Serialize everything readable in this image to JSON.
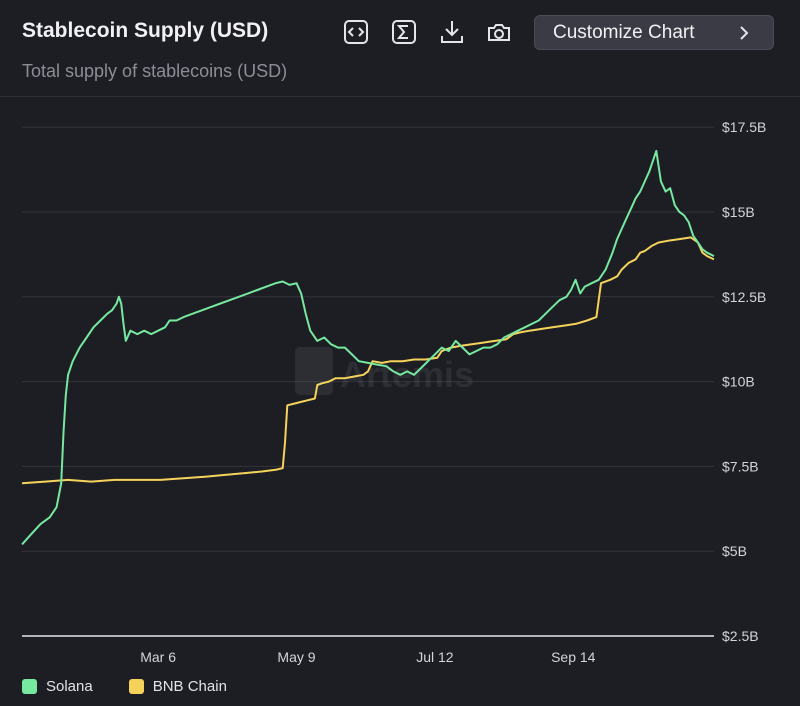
{
  "header": {
    "title": "Stablecoin Supply (USD)",
    "subtitle": "Total supply of stablecoins (USD)",
    "customize_label": "Customize Chart",
    "icons": [
      "embed-code-icon",
      "sum-icon",
      "download-icon",
      "camera-icon",
      "chevron-right-icon"
    ]
  },
  "watermark": "Artemis",
  "colors": {
    "solana": "#76e8a0",
    "bnb": "#f5d35a",
    "background": "#1d1e24",
    "grid": "#33343c",
    "axis_text": "#d4d4da"
  },
  "chart_data": {
    "type": "line",
    "title": "Stablecoin Supply (USD)",
    "subtitle": "Total supply of stablecoins (USD)",
    "x_tick_labels": [
      "Mar 6",
      "May 9",
      "Jul 12",
      "Sep 14"
    ],
    "y_tick_labels": [
      "$2.5B",
      "$5B",
      "$7.5B",
      "$10B",
      "$12.5B",
      "$15B",
      "$17.5B"
    ],
    "y_ticks": [
      2.5,
      5,
      7.5,
      10,
      12.5,
      15,
      17.5
    ],
    "ylim": [
      2.5,
      18.3
    ],
    "xlim": [
      0,
      300
    ],
    "x_tick_positions": [
      59,
      119,
      179,
      239
    ],
    "y_unit": "B USD",
    "grid": true,
    "legend_position": "bottom-left",
    "series": [
      {
        "name": "Solana",
        "color": "#76e8a0",
        "points": [
          [
            0,
            5.2
          ],
          [
            4,
            5.5
          ],
          [
            8,
            5.8
          ],
          [
            12,
            6.0
          ],
          [
            15,
            6.3
          ],
          [
            17,
            7.0
          ],
          [
            18,
            8.5
          ],
          [
            19,
            9.6
          ],
          [
            20,
            10.2
          ],
          [
            22,
            10.6
          ],
          [
            25,
            11.0
          ],
          [
            28,
            11.3
          ],
          [
            31,
            11.6
          ],
          [
            34,
            11.8
          ],
          [
            37,
            12.0
          ],
          [
            39,
            12.1
          ],
          [
            41,
            12.3
          ],
          [
            42,
            12.5
          ],
          [
            43,
            12.3
          ],
          [
            44,
            11.7
          ],
          [
            45,
            11.2
          ],
          [
            47,
            11.5
          ],
          [
            50,
            11.4
          ],
          [
            53,
            11.5
          ],
          [
            56,
            11.4
          ],
          [
            59,
            11.5
          ],
          [
            62,
            11.6
          ],
          [
            64,
            11.8
          ],
          [
            67,
            11.8
          ],
          [
            70,
            11.9
          ],
          [
            74,
            12.0
          ],
          [
            78,
            12.1
          ],
          [
            82,
            12.2
          ],
          [
            86,
            12.3
          ],
          [
            90,
            12.4
          ],
          [
            94,
            12.5
          ],
          [
            98,
            12.6
          ],
          [
            102,
            12.7
          ],
          [
            106,
            12.8
          ],
          [
            110,
            12.9
          ],
          [
            113,
            12.95
          ],
          [
            116,
            12.85
          ],
          [
            119,
            12.9
          ],
          [
            121,
            12.6
          ],
          [
            123,
            12.0
          ],
          [
            125,
            11.5
          ],
          [
            128,
            11.2
          ],
          [
            131,
            11.3
          ],
          [
            134,
            11.1
          ],
          [
            137,
            11.0
          ],
          [
            140,
            11.0
          ],
          [
            143,
            10.8
          ],
          [
            146,
            10.6
          ],
          [
            150,
            10.55
          ],
          [
            154,
            10.5
          ],
          [
            158,
            10.45
          ],
          [
            161,
            10.3
          ],
          [
            164,
            10.2
          ],
          [
            167,
            10.3
          ],
          [
            170,
            10.2
          ],
          [
            173,
            10.4
          ],
          [
            176,
            10.6
          ],
          [
            179,
            10.8
          ],
          [
            182,
            11.0
          ],
          [
            185,
            10.9
          ],
          [
            188,
            11.2
          ],
          [
            191,
            11.0
          ],
          [
            194,
            10.8
          ],
          [
            197,
            10.9
          ],
          [
            200,
            11.0
          ],
          [
            203,
            11.0
          ],
          [
            206,
            11.1
          ],
          [
            209,
            11.3
          ],
          [
            212,
            11.4
          ],
          [
            215,
            11.5
          ],
          [
            218,
            11.6
          ],
          [
            221,
            11.7
          ],
          [
            224,
            11.8
          ],
          [
            227,
            12.0
          ],
          [
            230,
            12.2
          ],
          [
            233,
            12.4
          ],
          [
            236,
            12.5
          ],
          [
            238,
            12.7
          ],
          [
            240,
            13.0
          ],
          [
            242,
            12.6
          ],
          [
            244,
            12.8
          ],
          [
            247,
            12.9
          ],
          [
            250,
            13.0
          ],
          [
            253,
            13.3
          ],
          [
            256,
            13.8
          ],
          [
            258,
            14.2
          ],
          [
            260,
            14.5
          ],
          [
            262,
            14.8
          ],
          [
            264,
            15.1
          ],
          [
            266,
            15.4
          ],
          [
            268,
            15.6
          ],
          [
            270,
            15.9
          ],
          [
            272,
            16.2
          ],
          [
            274,
            16.6
          ],
          [
            275,
            16.8
          ],
          [
            277,
            15.9
          ],
          [
            279,
            15.6
          ],
          [
            281,
            15.7
          ],
          [
            283,
            15.2
          ],
          [
            285,
            15.0
          ],
          [
            287,
            14.9
          ],
          [
            289,
            14.7
          ],
          [
            291,
            14.3
          ],
          [
            293,
            14.1
          ],
          [
            295,
            13.9
          ],
          [
            297,
            13.8
          ],
          [
            300,
            13.7
          ]
        ]
      },
      {
        "name": "BNB Chain",
        "color": "#f5d35a",
        "points": [
          [
            0,
            7.0
          ],
          [
            10,
            7.05
          ],
          [
            20,
            7.1
          ],
          [
            30,
            7.05
          ],
          [
            40,
            7.1
          ],
          [
            50,
            7.1
          ],
          [
            60,
            7.1
          ],
          [
            70,
            7.15
          ],
          [
            80,
            7.2
          ],
          [
            88,
            7.25
          ],
          [
            96,
            7.3
          ],
          [
            104,
            7.35
          ],
          [
            110,
            7.4
          ],
          [
            113,
            7.45
          ],
          [
            114,
            8.2
          ],
          [
            115,
            9.3
          ],
          [
            118,
            9.35
          ],
          [
            121,
            9.4
          ],
          [
            124,
            9.45
          ],
          [
            127,
            9.5
          ],
          [
            128,
            9.9
          ],
          [
            130,
            9.95
          ],
          [
            133,
            10.0
          ],
          [
            136,
            10.1
          ],
          [
            140,
            10.1
          ],
          [
            144,
            10.15
          ],
          [
            148,
            10.2
          ],
          [
            150,
            10.3
          ],
          [
            152,
            10.6
          ],
          [
            156,
            10.55
          ],
          [
            160,
            10.6
          ],
          [
            165,
            10.6
          ],
          [
            170,
            10.65
          ],
          [
            175,
            10.65
          ],
          [
            180,
            10.7
          ],
          [
            182,
            10.9
          ],
          [
            186,
            11.0
          ],
          [
            190,
            11.05
          ],
          [
            195,
            11.1
          ],
          [
            200,
            11.15
          ],
          [
            205,
            11.2
          ],
          [
            210,
            11.25
          ],
          [
            213,
            11.4
          ],
          [
            216,
            11.45
          ],
          [
            220,
            11.5
          ],
          [
            225,
            11.55
          ],
          [
            230,
            11.6
          ],
          [
            235,
            11.65
          ],
          [
            240,
            11.7
          ],
          [
            245,
            11.8
          ],
          [
            249,
            11.9
          ],
          [
            251,
            12.9
          ],
          [
            255,
            13.0
          ],
          [
            258,
            13.1
          ],
          [
            260,
            13.3
          ],
          [
            263,
            13.5
          ],
          [
            266,
            13.6
          ],
          [
            268,
            13.8
          ],
          [
            270,
            13.85
          ],
          [
            273,
            14.0
          ],
          [
            276,
            14.1
          ],
          [
            280,
            14.15
          ],
          [
            285,
            14.2
          ],
          [
            290,
            14.25
          ],
          [
            293,
            14.1
          ],
          [
            295,
            13.8
          ],
          [
            297,
            13.7
          ],
          [
            300,
            13.6
          ]
        ]
      }
    ]
  },
  "legend": [
    {
      "label": "Solana",
      "color": "#76e8a0"
    },
    {
      "label": "BNB Chain",
      "color": "#f5d35a"
    }
  ]
}
